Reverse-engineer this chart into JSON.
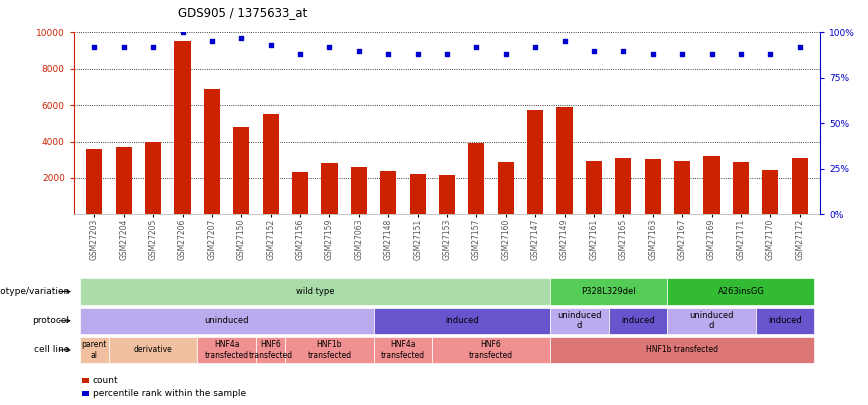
{
  "title": "GDS905 / 1375633_at",
  "samples": [
    "GSM27203",
    "GSM27204",
    "GSM27205",
    "GSM27206",
    "GSM27207",
    "GSM27150",
    "GSM27152",
    "GSM27156",
    "GSM27159",
    "GSM27063",
    "GSM27148",
    "GSM27151",
    "GSM27153",
    "GSM27157",
    "GSM27160",
    "GSM27147",
    "GSM27149",
    "GSM27161",
    "GSM27165",
    "GSM27163",
    "GSM27167",
    "GSM27169",
    "GSM27171",
    "GSM27170",
    "GSM27172"
  ],
  "counts": [
    3600,
    3700,
    4000,
    9500,
    6900,
    4800,
    5500,
    2300,
    2800,
    2600,
    2400,
    2200,
    2150,
    3900,
    2850,
    5750,
    5900,
    2950,
    3100,
    3050,
    2950,
    3200,
    2900,
    2450,
    3100
  ],
  "percentile_ranks": [
    92,
    92,
    92,
    100,
    95,
    97,
    93,
    88,
    92,
    90,
    88,
    88,
    88,
    92,
    88,
    92,
    95,
    90,
    90,
    88,
    88,
    88,
    88,
    88,
    92
  ],
  "bar_color": "#cc2200",
  "dot_color": "#0000cc",
  "ylim_left": [
    0,
    10000
  ],
  "ylim_right": [
    0,
    100
  ],
  "yticks_left": [
    2000,
    4000,
    6000,
    8000,
    10000
  ],
  "yticks_right": [
    0,
    25,
    50,
    75,
    100
  ],
  "grid_y": [
    2000,
    4000,
    6000,
    8000,
    10000
  ],
  "genotype_groups": [
    {
      "label": "wild type",
      "start": 0,
      "end": 16,
      "color": "#aaddaa"
    },
    {
      "label": "P328L329del",
      "start": 16,
      "end": 20,
      "color": "#55cc55"
    },
    {
      "label": "A263insGG",
      "start": 20,
      "end": 25,
      "color": "#33bb33"
    }
  ],
  "protocol_groups": [
    {
      "label": "uninduced",
      "start": 0,
      "end": 10,
      "color": "#bbaaee"
    },
    {
      "label": "induced",
      "start": 10,
      "end": 16,
      "color": "#6655cc"
    },
    {
      "label": "uninduced\nd",
      "start": 16,
      "end": 18,
      "color": "#bbaaee"
    },
    {
      "label": "induced",
      "start": 18,
      "end": 20,
      "color": "#6655cc"
    },
    {
      "label": "uninduced\nd",
      "start": 20,
      "end": 23,
      "color": "#bbaaee"
    },
    {
      "label": "induced",
      "start": 23,
      "end": 25,
      "color": "#6655cc"
    }
  ],
  "cellline_groups": [
    {
      "label": "parent\nal",
      "start": 0,
      "end": 1,
      "color": "#f0c0a0"
    },
    {
      "label": "derivative",
      "start": 1,
      "end": 4,
      "color": "#f0c0a0"
    },
    {
      "label": "HNF4a\ntransfected",
      "start": 4,
      "end": 6,
      "color": "#f09090"
    },
    {
      "label": "HNF6\ntransfected",
      "start": 6,
      "end": 7,
      "color": "#f09090"
    },
    {
      "label": "HNF1b\ntransfected",
      "start": 7,
      "end": 10,
      "color": "#f09090"
    },
    {
      "label": "HNF4a\ntransfected",
      "start": 10,
      "end": 12,
      "color": "#f09090"
    },
    {
      "label": "HNF6\ntransfected",
      "start": 12,
      "end": 16,
      "color": "#f09090"
    },
    {
      "label": "HNF1b transfected",
      "start": 16,
      "end": 25,
      "color": "#dd7777"
    }
  ],
  "left_axis_color": "#cc2200",
  "right_axis_color": "#0000cc",
  "bg_color": "#ffffff"
}
